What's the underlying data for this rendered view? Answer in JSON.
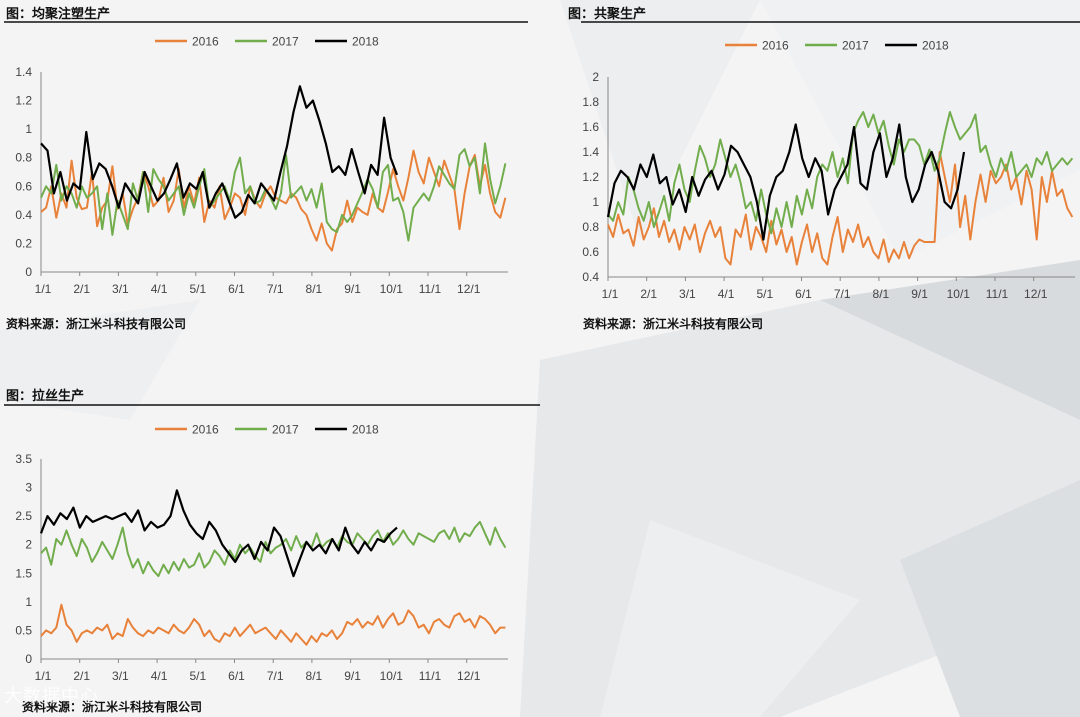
{
  "watermark": "大数据中心",
  "colors": {
    "s2016": "#e8823a",
    "s2017": "#72ad4d",
    "s2018": "#000000"
  },
  "chart_data": [
    {
      "type": "line",
      "title": "图：均聚注塑生产",
      "source": "资料来源：浙江米斗科技有限公司",
      "ylim": [
        0,
        1.4
      ],
      "yticks": [
        "0",
        "0.2",
        "0.4",
        "0.6",
        "0.8",
        "1",
        "1.2",
        "1.4"
      ],
      "xticks": [
        "1/1",
        "2/1",
        "3/1",
        "4/1",
        "5/1",
        "6/1",
        "7/1",
        "8/1",
        "9/1",
        "10/1",
        "11/1",
        "12/1"
      ],
      "legend": [
        "2016",
        "2017",
        "2018"
      ],
      "series": [
        {
          "name": "2016",
          "end_month": 12,
          "values": [
            0.42,
            0.45,
            0.6,
            0.38,
            0.55,
            0.45,
            0.78,
            0.52,
            0.44,
            0.45,
            0.7,
            0.32,
            0.45,
            0.5,
            0.74,
            0.44,
            0.55,
            0.33,
            0.44,
            0.52,
            0.7,
            0.6,
            0.46,
            0.5,
            0.66,
            0.42,
            0.5,
            0.72,
            0.45,
            0.6,
            0.48,
            0.66,
            0.35,
            0.5,
            0.45,
            0.6,
            0.37,
            0.45,
            0.55,
            0.52,
            0.4,
            0.6,
            0.5,
            0.45,
            0.55,
            0.6,
            0.52,
            0.5,
            0.48,
            0.55,
            0.52,
            0.44,
            0.4,
            0.3,
            0.22,
            0.34,
            0.2,
            0.15,
            0.3,
            0.34,
            0.5,
            0.35,
            0.45,
            0.42,
            0.4,
            0.55,
            0.45,
            0.42,
            0.56,
            0.72,
            0.6,
            0.5,
            0.66,
            0.85,
            0.7,
            0.62,
            0.8,
            0.7,
            0.6,
            0.78,
            0.68,
            0.58,
            0.3,
            0.55,
            0.74,
            0.82,
            0.6,
            0.75,
            0.55,
            0.42,
            0.38,
            0.52
          ]
        },
        {
          "name": "2017",
          "end_month": 12,
          "values": [
            0.52,
            0.6,
            0.55,
            0.75,
            0.5,
            0.6,
            0.55,
            0.45,
            0.6,
            0.52,
            0.55,
            0.6,
            0.3,
            0.55,
            0.26,
            0.5,
            0.4,
            0.3,
            0.62,
            0.5,
            0.7,
            0.42,
            0.72,
            0.65,
            0.6,
            0.5,
            0.55,
            0.6,
            0.4,
            0.55,
            0.45,
            0.6,
            0.72,
            0.45,
            0.5,
            0.55,
            0.6,
            0.5,
            0.7,
            0.8,
            0.55,
            0.6,
            0.48,
            0.5,
            0.58,
            0.52,
            0.44,
            0.55,
            0.82,
            0.52,
            0.56,
            0.6,
            0.5,
            0.58,
            0.45,
            0.62,
            0.35,
            0.3,
            0.28,
            0.4,
            0.35,
            0.4,
            0.48,
            0.56,
            0.65,
            0.58,
            0.45,
            0.7,
            0.75,
            0.5,
            0.52,
            0.42,
            0.22,
            0.45,
            0.5,
            0.55,
            0.5,
            0.6,
            0.74,
            0.68,
            0.62,
            0.58,
            0.82,
            0.86,
            0.74,
            0.8,
            0.55,
            0.9,
            0.65,
            0.48,
            0.6,
            0.76
          ]
        },
        {
          "name": "2018",
          "end_month": 9.2,
          "values": [
            0.9,
            0.85,
            0.55,
            0.7,
            0.5,
            0.62,
            0.58,
            0.98,
            0.65,
            0.76,
            0.72,
            0.6,
            0.45,
            0.62,
            0.55,
            0.48,
            0.7,
            0.6,
            0.5,
            0.55,
            0.65,
            0.76,
            0.52,
            0.62,
            0.58,
            0.7,
            0.45,
            0.55,
            0.62,
            0.5,
            0.38,
            0.42,
            0.54,
            0.48,
            0.62,
            0.56,
            0.5,
            0.7,
            0.88,
            1.12,
            1.3,
            1.15,
            1.2,
            1.06,
            0.9,
            0.7,
            0.74,
            0.68,
            0.86,
            0.7,
            0.55,
            0.75,
            0.68,
            1.08,
            0.8,
            0.68
          ]
        }
      ]
    },
    {
      "type": "line",
      "title": "图：共聚生产",
      "source": "资料来源：浙江米斗科技有限公司",
      "ylim": [
        0.4,
        2
      ],
      "yticks": [
        "0.4",
        "0.6",
        "0.8",
        "1",
        "1.2",
        "1.4",
        "1.6",
        "1.8",
        "2"
      ],
      "xticks": [
        "1/1",
        "2/1",
        "3/1",
        "4/1",
        "5/1",
        "6/1",
        "7/1",
        "8/1",
        "9/1",
        "10/1",
        "11/1",
        "12/1"
      ],
      "legend": [
        "2016",
        "2017",
        "2018"
      ],
      "series": [
        {
          "name": "2016",
          "end_month": 12,
          "values": [
            0.82,
            0.72,
            0.9,
            0.75,
            0.78,
            0.65,
            0.88,
            0.7,
            0.8,
            0.95,
            0.72,
            0.85,
            0.68,
            0.78,
            0.62,
            0.8,
            0.7,
            0.82,
            0.6,
            0.75,
            0.85,
            0.72,
            0.8,
            0.55,
            0.5,
            0.78,
            0.72,
            0.9,
            0.62,
            0.8,
            0.72,
            0.6,
            0.85,
            0.66,
            0.78,
            0.6,
            0.72,
            0.5,
            0.68,
            0.82,
            0.6,
            0.75,
            0.55,
            0.5,
            0.72,
            0.88,
            0.6,
            0.78,
            0.68,
            0.82,
            0.64,
            0.72,
            0.6,
            0.55,
            0.7,
            0.52,
            0.62,
            0.55,
            0.68,
            0.55,
            0.65,
            0.7,
            0.68,
            0.68,
            0.68,
            1.4,
            1.2,
            1.0,
            1.3,
            0.8,
            1.05,
            0.7,
            1.0,
            1.22,
            1.0,
            1.25,
            1.15,
            1.2,
            1.3,
            1.1,
            1.2,
            0.98,
            1.25,
            1.1,
            0.7,
            1.2,
            1.0,
            1.25,
            1.05,
            1.1,
            0.95,
            0.88
          ]
        },
        {
          "name": "2017",
          "end_month": 12,
          "values": [
            0.9,
            0.85,
            1.0,
            0.9,
            1.2,
            1.1,
            0.95,
            0.85,
            1.0,
            0.8,
            0.92,
            1.05,
            0.85,
            1.15,
            1.3,
            1.1,
            1.0,
            1.25,
            1.45,
            1.35,
            1.2,
            1.3,
            1.5,
            1.35,
            1.2,
            1.3,
            1.15,
            0.95,
            1.0,
            0.85,
            1.1,
            0.9,
            0.75,
            0.95,
            0.8,
            1.0,
            0.8,
            1.05,
            0.9,
            1.1,
            0.95,
            1.2,
            1.3,
            1.25,
            1.4,
            1.2,
            1.35,
            1.15,
            1.55,
            1.65,
            1.72,
            1.6,
            1.7,
            1.55,
            1.65,
            1.45,
            1.3,
            1.5,
            1.4,
            1.5,
            1.5,
            1.45,
            1.3,
            1.42,
            1.25,
            1.35,
            1.55,
            1.72,
            1.6,
            1.5,
            1.55,
            1.6,
            1.7,
            1.4,
            1.45,
            1.3,
            1.2,
            1.35,
            1.25,
            1.4,
            1.2,
            1.25,
            1.3,
            1.2,
            1.35,
            1.3,
            1.4,
            1.25,
            1.3,
            1.35,
            1.3,
            1.35
          ]
        },
        {
          "name": "2018",
          "end_month": 9.2,
          "values": [
            0.88,
            1.15,
            1.25,
            1.2,
            1.1,
            1.3,
            1.2,
            1.38,
            1.15,
            1.2,
            0.98,
            1.1,
            0.92,
            1.2,
            1.05,
            1.18,
            1.25,
            1.1,
            1.22,
            1.45,
            1.4,
            1.3,
            1.2,
            1.0,
            0.7,
            1.05,
            1.2,
            1.25,
            1.4,
            1.62,
            1.35,
            1.2,
            1.35,
            1.25,
            0.9,
            1.1,
            1.2,
            1.3,
            1.6,
            1.15,
            1.1,
            1.4,
            1.55,
            1.2,
            1.35,
            1.62,
            1.2,
            1.0,
            1.1,
            1.3,
            1.4,
            1.25,
            1.0,
            0.95,
            1.1,
            1.4
          ]
        }
      ]
    },
    {
      "type": "line",
      "title": "图：拉丝生产",
      "source": "资料来源：浙江米斗科技有限公司",
      "ylim": [
        0,
        3.5
      ],
      "yticks": [
        "0",
        "0.5",
        "1",
        "1.5",
        "2",
        "2.5",
        "3",
        "3.5"
      ],
      "xticks": [
        "1/1",
        "2/1",
        "3/1",
        "4/1",
        "5/1",
        "6/1",
        "7/1",
        "8/1",
        "9/1",
        "10/1",
        "11/1",
        "12/1"
      ],
      "legend": [
        "2016",
        "2017",
        "2018"
      ],
      "series": [
        {
          "name": "2016",
          "end_month": 12,
          "values": [
            0.4,
            0.5,
            0.45,
            0.55,
            0.95,
            0.6,
            0.5,
            0.3,
            0.45,
            0.5,
            0.45,
            0.55,
            0.5,
            0.6,
            0.35,
            0.45,
            0.4,
            0.7,
            0.55,
            0.45,
            0.4,
            0.5,
            0.45,
            0.55,
            0.5,
            0.45,
            0.6,
            0.5,
            0.45,
            0.55,
            0.7,
            0.6,
            0.4,
            0.5,
            0.35,
            0.3,
            0.45,
            0.4,
            0.55,
            0.4,
            0.5,
            0.6,
            0.45,
            0.5,
            0.55,
            0.45,
            0.35,
            0.5,
            0.4,
            0.3,
            0.45,
            0.35,
            0.25,
            0.4,
            0.3,
            0.45,
            0.4,
            0.5,
            0.35,
            0.45,
            0.65,
            0.6,
            0.7,
            0.55,
            0.65,
            0.6,
            0.75,
            0.55,
            0.7,
            0.8,
            0.6,
            0.65,
            0.85,
            0.75,
            0.55,
            0.6,
            0.45,
            0.65,
            0.7,
            0.6,
            0.55,
            0.75,
            0.8,
            0.65,
            0.7,
            0.55,
            0.75,
            0.7,
            0.6,
            0.45,
            0.55,
            0.55
          ]
        },
        {
          "name": "2017",
          "end_month": 12,
          "values": [
            1.85,
            1.95,
            1.65,
            2.1,
            2.0,
            2.25,
            2.0,
            1.8,
            2.1,
            1.95,
            1.7,
            1.85,
            2.05,
            1.9,
            1.75,
            2.0,
            2.3,
            1.85,
            1.6,
            1.75,
            1.5,
            1.7,
            1.55,
            1.45,
            1.65,
            1.5,
            1.7,
            1.55,
            1.75,
            1.6,
            1.65,
            1.85,
            1.6,
            1.7,
            1.9,
            1.8,
            1.65,
            1.9,
            1.75,
            2.0,
            1.85,
            1.95,
            1.8,
            1.7,
            2.05,
            1.85,
            1.95,
            2.0,
            2.1,
            1.9,
            2.15,
            1.95,
            2.05,
            1.95,
            2.2,
            1.95,
            2.05,
            2.1,
            1.95,
            2.15,
            2.05,
            2.0,
            2.2,
            2.1,
            2.0,
            2.15,
            2.25,
            2.05,
            2.2,
            2.0,
            2.1,
            2.25,
            2.1,
            2.0,
            2.2,
            2.15,
            2.1,
            2.05,
            2.2,
            2.25,
            2.1,
            2.3,
            2.05,
            2.2,
            2.15,
            2.3,
            2.4,
            2.2,
            2.0,
            2.3,
            2.1,
            1.95
          ]
        },
        {
          "name": "2018",
          "end_month": 9.2,
          "values": [
            2.2,
            2.5,
            2.35,
            2.55,
            2.45,
            2.65,
            2.3,
            2.5,
            2.4,
            2.45,
            2.5,
            2.45,
            2.5,
            2.55,
            2.4,
            2.6,
            2.25,
            2.4,
            2.3,
            2.35,
            2.5,
            2.95,
            2.6,
            2.35,
            2.2,
            2.1,
            2.4,
            2.25,
            2.0,
            1.85,
            1.7,
            1.9,
            2.0,
            1.75,
            2.05,
            1.9,
            2.3,
            2.15,
            1.8,
            1.45,
            1.75,
            2.05,
            1.9,
            2.0,
            1.85,
            2.1,
            1.9,
            2.3,
            2.0,
            1.85,
            2.05,
            1.9,
            2.1,
            2.05,
            2.2,
            2.3
          ]
        }
      ]
    }
  ]
}
